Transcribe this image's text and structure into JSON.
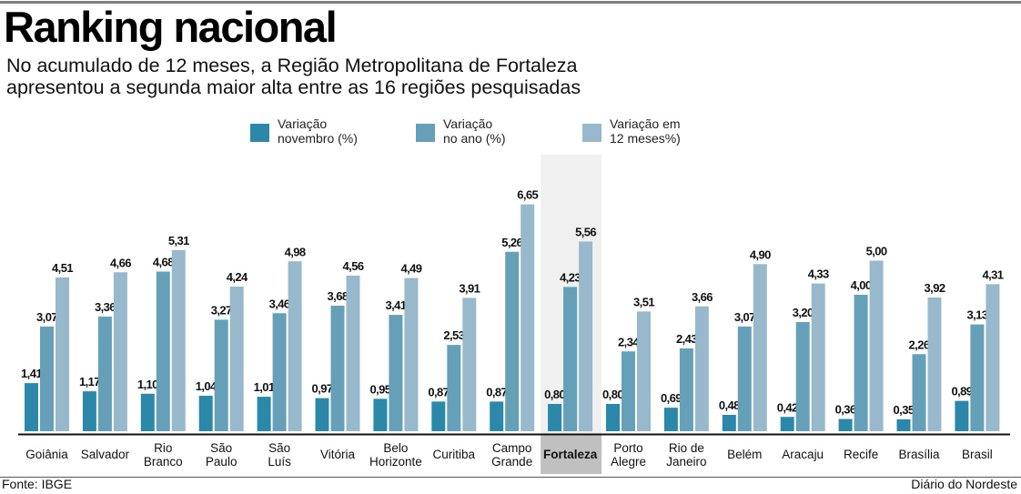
{
  "header": {
    "title": "Ranking nacional",
    "subtitle": "No acumulado de 12 meses, a Região Metropolitana de Fortaleza\napresentou a segunda maior alta entre as 16 regiões pesquisadas"
  },
  "legend": [
    {
      "label": "Variação\nnovembro (%)",
      "color": "#2b88a8"
    },
    {
      "label": "Variação\nno ano (%)",
      "color": "#659fb8"
    },
    {
      "label": "Variação em\n12 meses%)",
      "color": "#98b9cc"
    }
  ],
  "footer": {
    "source": "Fonte: IBGE",
    "credit": "Diário do Nordeste"
  },
  "chart_data": {
    "type": "bar",
    "title": "Ranking nacional",
    "subtitle": "No acumulado de 12 meses, a Região Metropolitana de Fortaleza apresentou a segunda maior alta entre as 16 regiões pesquisadas",
    "xlabel": "",
    "ylabel": "",
    "ylim": [
      0,
      7
    ],
    "grid": false,
    "legend_position": "top",
    "highlighted_category": "Fortaleza",
    "highlight_color": "#f0f0f0",
    "highlight_label_color": "#c0c0c0",
    "categories": [
      "Goiânia",
      "Salvador",
      "Rio\nBranco",
      "São\nPaulo",
      "São\nLuís",
      "Vitória",
      "Belo\nHorizonte",
      "Curitiba",
      "Campo\nGrande",
      "Fortaleza",
      "Porto\nAlegre",
      "Rio de\nJaneiro",
      "Belém",
      "Aracaju",
      "Recife",
      "Brasília",
      "Brasil"
    ],
    "series": [
      {
        "name": "Variação novembro (%)",
        "color": "#2b88a8",
        "values": [
          1.41,
          1.17,
          1.1,
          1.04,
          1.01,
          0.97,
          0.95,
          0.87,
          0.87,
          0.8,
          0.8,
          0.69,
          0.48,
          0.42,
          0.36,
          0.35,
          0.89
        ],
        "labels": [
          "1,41",
          "1,17",
          "1,10",
          "1,04",
          "1,01",
          "0,97",
          "0,95",
          "0,87",
          "0,87",
          "0,80",
          "0,80",
          "0,69",
          "0,48",
          "0,42",
          "0,36",
          "0,35",
          "0,89"
        ]
      },
      {
        "name": "Variação no ano (%)",
        "color": "#659fb8",
        "values": [
          3.07,
          3.36,
          4.68,
          3.27,
          3.46,
          3.68,
          3.41,
          2.53,
          5.26,
          4.23,
          2.34,
          2.43,
          3.07,
          3.2,
          4.0,
          2.26,
          3.13
        ],
        "labels": [
          "3,07",
          "3,36",
          "4,68",
          "3,27",
          "3,46",
          "3,68",
          "3,41",
          "2,53",
          "5,26",
          "4,23",
          "2,34",
          "2,43",
          "3,07",
          "3,20",
          "4,00",
          "2,26",
          "3,13"
        ]
      },
      {
        "name": "Variação em 12 meses%)",
        "color": "#98b9cc",
        "values": [
          4.51,
          4.66,
          5.31,
          4.24,
          4.98,
          4.56,
          4.49,
          3.91,
          6.65,
          5.56,
          3.51,
          3.66,
          4.9,
          4.33,
          5.0,
          3.92,
          4.31
        ],
        "labels": [
          "4,51",
          "4,66",
          "5,31",
          "4,24",
          "4,98",
          "4,56",
          "4,49",
          "3,91",
          "6,65",
          "5,56",
          "3,51",
          "3,66",
          "4,90",
          "4,33",
          "5,00",
          "3,92",
          "4,31"
        ]
      }
    ]
  }
}
